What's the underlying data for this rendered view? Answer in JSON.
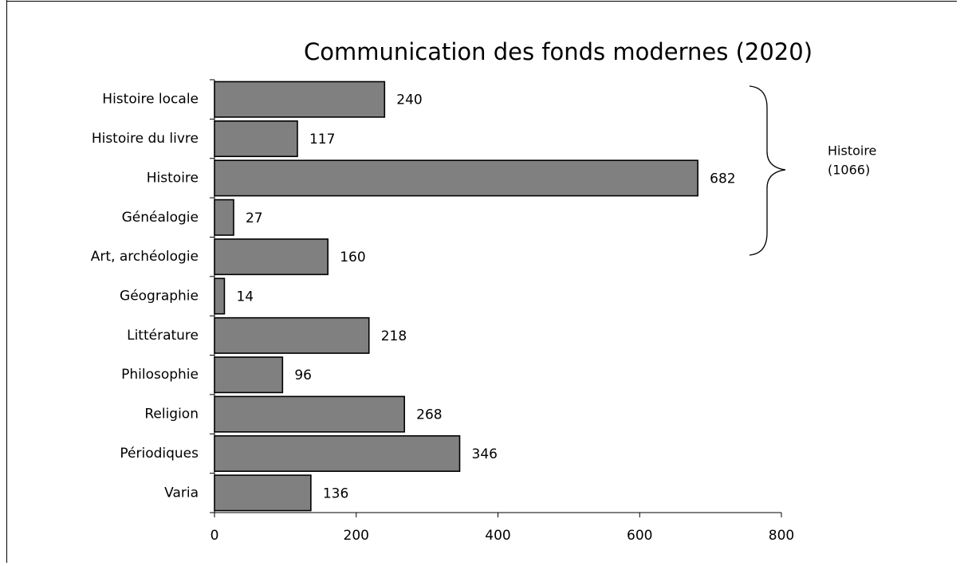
{
  "chart_data": {
    "type": "bar",
    "orientation": "horizontal",
    "title": "Communication des fonds modernes (2020)",
    "categories": [
      "Histoire locale",
      "Histoire du livre",
      "Histoire",
      "Généalogie",
      "Art, archéologie",
      "Géographie",
      "Littérature",
      "Philosophie",
      "Religion",
      "Périodiques",
      "Varia"
    ],
    "values": [
      240,
      117,
      682,
      27,
      160,
      14,
      218,
      96,
      268,
      346,
      136
    ],
    "color": "#808080",
    "xlim": [
      0,
      800
    ],
    "xticks": [
      0,
      200,
      400,
      600,
      800
    ],
    "annotation": [
      "Histoire",
      "(1066)"
    ]
  }
}
